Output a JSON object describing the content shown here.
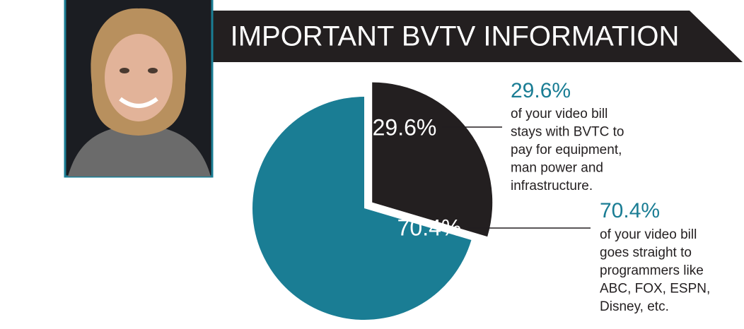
{
  "chart_data": {
    "type": "pie",
    "title": "IMPORTANT BVTV INFORMATION",
    "values": [
      29.6,
      70.4
    ],
    "value_labels": [
      "29.6%",
      "70.4%"
    ],
    "colors": [
      "#231f20",
      "#1a7d94"
    ],
    "descriptions": [
      [
        "of your video bill",
        "stays with BVTC to",
        "pay for equipment,",
        "man power and",
        "infrastructure."
      ],
      [
        "of your video bill",
        "goes straight to",
        "programmers like",
        "ABC, FOX, ESPN,",
        "Disney, etc."
      ]
    ]
  }
}
